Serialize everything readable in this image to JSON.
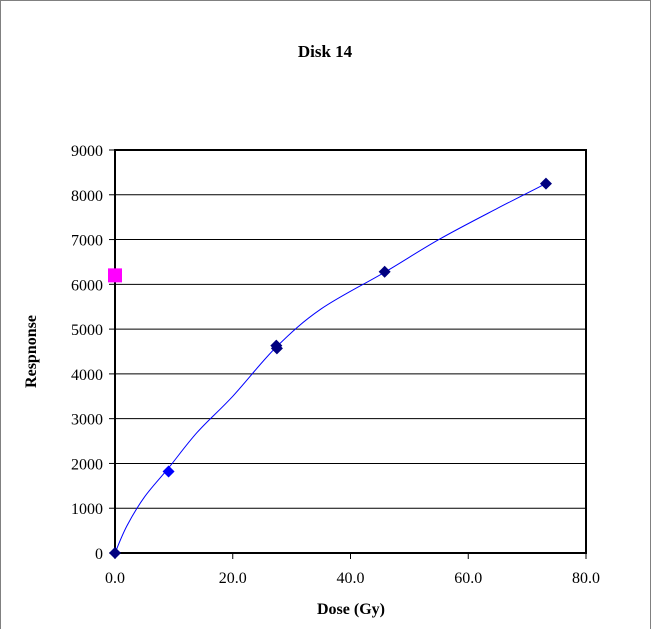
{
  "chart_data": {
    "type": "scatter",
    "title": "Disk 14",
    "xlabel": "Dose (Gy)",
    "ylabel": "Respnonse",
    "xlim": [
      0,
      80
    ],
    "ylim": [
      0,
      9000
    ],
    "x_ticks": [
      "0.0",
      "20.0",
      "40.0",
      "60.0",
      "80.0"
    ],
    "y_ticks": [
      "0",
      "1000",
      "2000",
      "3000",
      "4000",
      "5000",
      "6000",
      "7000",
      "8000",
      "9000"
    ],
    "grid": "horizontal",
    "legend": "none",
    "series": [
      {
        "marker": "diamond",
        "color": "#000080",
        "points": [
          {
            "x": 0.0,
            "y": 0
          },
          {
            "x": 27.4,
            "y": 4630
          },
          {
            "x": 27.5,
            "y": 4570
          },
          {
            "x": 45.8,
            "y": 6280
          },
          {
            "x": 73.2,
            "y": 8250
          }
        ]
      },
      {
        "marker": "diamond",
        "color": "#0000ff",
        "points": [
          {
            "x": 9.1,
            "y": 1820
          }
        ]
      },
      {
        "marker": "square",
        "color": "#ff00ff",
        "points": [
          {
            "x": 0.0,
            "y": 6200
          }
        ]
      }
    ],
    "trendline": {
      "color": "#0000ff",
      "points": [
        {
          "x": 0.0,
          "y": 0
        },
        {
          "x": 2.0,
          "y": 600
        },
        {
          "x": 5.0,
          "y": 1250
        },
        {
          "x": 9.1,
          "y": 1900
        },
        {
          "x": 14.0,
          "y": 2700
        },
        {
          "x": 20.0,
          "y": 3500
        },
        {
          "x": 27.4,
          "y": 4600
        },
        {
          "x": 35.0,
          "y": 5450
        },
        {
          "x": 45.8,
          "y": 6270
        },
        {
          "x": 55.0,
          "y": 7000
        },
        {
          "x": 65.0,
          "y": 7700
        },
        {
          "x": 73.2,
          "y": 8250
        }
      ]
    }
  }
}
